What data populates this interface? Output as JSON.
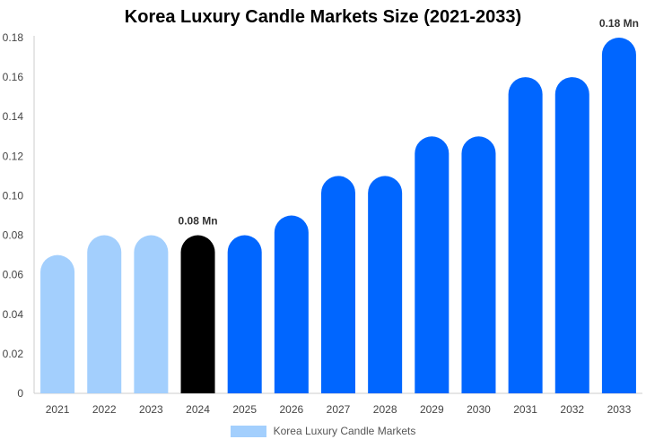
{
  "chart_data": {
    "type": "bar",
    "title": "Korea Luxury Candle Markets Size (2021-2033)",
    "categories": [
      "2021",
      "2022",
      "2023",
      "2024",
      "2025",
      "2026",
      "2027",
      "2028",
      "2029",
      "2030",
      "2031",
      "2032",
      "2033"
    ],
    "series": [
      {
        "name": "Korea Luxury Candle Markets",
        "values": [
          0.07,
          0.08,
          0.08,
          0.08,
          0.08,
          0.09,
          0.11,
          0.11,
          0.13,
          0.13,
          0.16,
          0.16,
          0.18
        ]
      }
    ],
    "bar_colors": [
      "#a3cffd",
      "#a3cffd",
      "#a3cffd",
      "#000000",
      "#0066ff",
      "#0066ff",
      "#0066ff",
      "#0066ff",
      "#0066ff",
      "#0066ff",
      "#0066ff",
      "#0066ff",
      "#0066ff"
    ],
    "legend_color": "#a3cffd",
    "ylim": [
      0,
      0.18
    ],
    "yticks": [
      "0",
      "0.02",
      "0.04",
      "0.06",
      "0.08",
      "0.10",
      "0.12",
      "0.14",
      "0.16",
      "0.18"
    ],
    "annotations": [
      {
        "category": "2024",
        "text": "0.08 Mn"
      },
      {
        "category": "2033",
        "text": "0.18 Mn"
      }
    ],
    "legend_position": "bottom",
    "grid": false
  }
}
